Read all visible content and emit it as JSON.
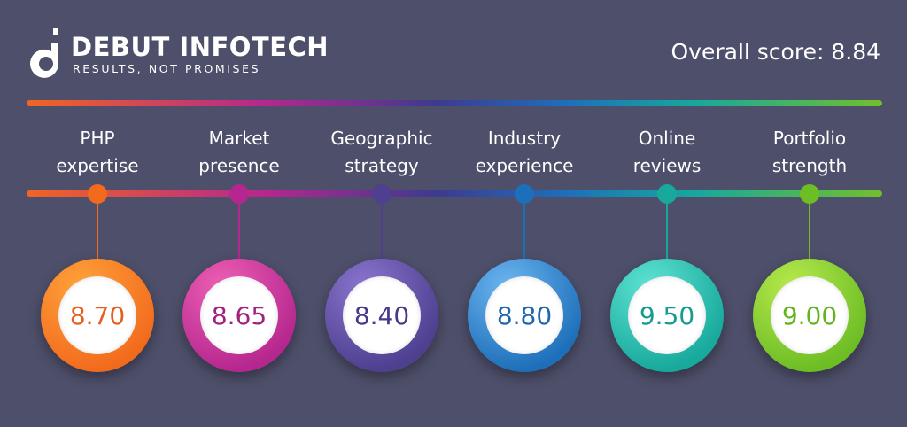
{
  "brand": {
    "name": "DEBUT INFOTECH",
    "tagline": "RESULTS, NOT PROMISES",
    "logo_icon": "debut-d-logo-icon"
  },
  "overall": {
    "text": "Overall score: 8.84"
  },
  "colors": {
    "background": "#4e4f6a",
    "bar_start": "#f16522",
    "bar_end": "#72bf2a"
  },
  "scores": [
    {
      "line1": "PHP",
      "line2": "expertise",
      "value": "8.70",
      "color": "#f26b1d",
      "light": "#ffa23a",
      "text": "#e5601d"
    },
    {
      "line1": "Market",
      "line2": "presence",
      "value": "8.65",
      "color": "#b5278e",
      "light": "#ee5fb4",
      "text": "#a2237f"
    },
    {
      "line1": "Geographic",
      "line2": "strategy",
      "value": "8.40",
      "color": "#4e3f8f",
      "light": "#8a75cf",
      "text": "#473a8a"
    },
    {
      "line1": "Industry",
      "line2": "experience",
      "value": "8.80",
      "color": "#1e6fba",
      "light": "#6cb6f0",
      "text": "#1f66ac"
    },
    {
      "line1": "Online",
      "line2": "reviews",
      "value": "9.50",
      "color": "#17a99c",
      "light": "#5fe3d2",
      "text": "#159b90"
    },
    {
      "line1": "Portfolio",
      "line2": "strength",
      "value": "9.00",
      "color": "#6dbd25",
      "light": "#b7ea4d",
      "text": "#62b41f"
    }
  ]
}
